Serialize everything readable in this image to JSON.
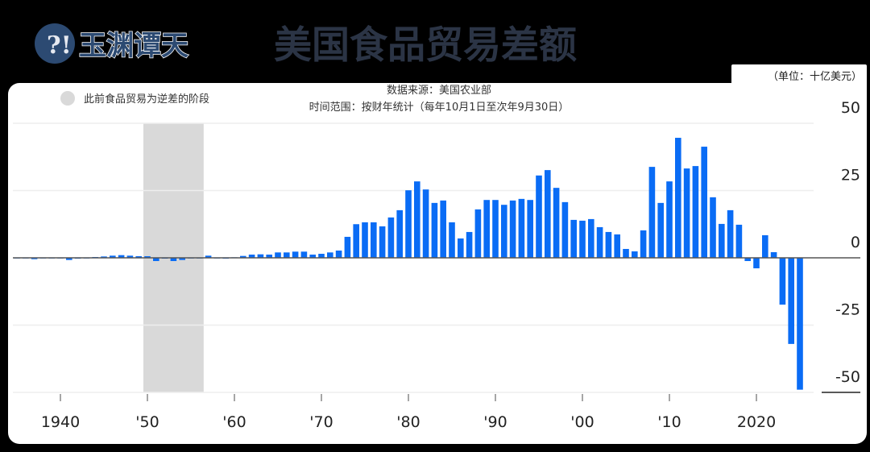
{
  "header": {
    "logo_text": "玉渊谭天",
    "title": "美国食品贸易差额"
  },
  "unit_label": "（单位：十亿美元）",
  "source_line": "数据来源：美国农业部",
  "period_line": "时间范围：按财年统计（每年10月1日至次年9月30日）",
  "colors": {
    "bar": "#0a6cf5",
    "shade": "#d9d9d9",
    "title": "#2b3445",
    "logo": "#2c4a72"
  },
  "chart_data": {
    "type": "bar",
    "title": "美国食品贸易差额",
    "xlabel": "",
    "ylabel": "",
    "ylim": [
      -50,
      50
    ],
    "yticks": [
      50,
      25,
      0,
      -25,
      -50
    ],
    "ytick_labels": [
      "50",
      "25",
      "0",
      "-25",
      "-50"
    ],
    "xticks": [
      1940,
      1950,
      1960,
      1970,
      1980,
      1990,
      2000,
      2010,
      2020
    ],
    "xtick_labels": [
      "1940",
      "'50",
      "'60",
      "'70",
      "'80",
      "'90",
      "'00",
      "'10",
      "2020"
    ],
    "grid": true,
    "legend": {
      "position": "top-left",
      "label": "此前食品贸易为逆差的阶段"
    },
    "shaded_period": [
      1950,
      1956
    ],
    "x": [
      1935,
      1936,
      1937,
      1938,
      1939,
      1940,
      1941,
      1942,
      1943,
      1944,
      1945,
      1946,
      1947,
      1948,
      1949,
      1950,
      1951,
      1952,
      1953,
      1954,
      1955,
      1956,
      1957,
      1958,
      1959,
      1960,
      1961,
      1962,
      1963,
      1964,
      1965,
      1966,
      1967,
      1968,
      1969,
      1970,
      1971,
      1972,
      1973,
      1974,
      1975,
      1976,
      1977,
      1978,
      1979,
      1980,
      1981,
      1982,
      1983,
      1984,
      1985,
      1986,
      1987,
      1988,
      1989,
      1990,
      1991,
      1992,
      1993,
      1994,
      1995,
      1996,
      1997,
      1998,
      1999,
      2000,
      2001,
      2002,
      2003,
      2004,
      2005,
      2006,
      2007,
      2008,
      2009,
      2010,
      2011,
      2012,
      2013,
      2014,
      2015,
      2016,
      2017,
      2018,
      2019,
      2020,
      2021,
      2022,
      2023,
      2024,
      2025
    ],
    "values": [
      -0.2,
      -0.2,
      -0.5,
      -0.2,
      -0.2,
      -0.2,
      -0.8,
      -0.3,
      -0.2,
      0.3,
      0.5,
      0.8,
      1.0,
      0.8,
      0.6,
      0.6,
      -1.2,
      -0.3,
      -1.2,
      -0.8,
      -0.2,
      -0.1,
      0.8,
      -0.2,
      -0.3,
      0.2,
      0.7,
      1.2,
      1.3,
      1.2,
      2.0,
      2.0,
      2.3,
      2.3,
      1.2,
      1.5,
      2.0,
      2.7,
      7.8,
      12.5,
      13.2,
      13.2,
      11.7,
      15.0,
      17.7,
      25.1,
      28.4,
      25.4,
      20.4,
      21.3,
      13.2,
      7.2,
      9.6,
      18.0,
      21.5,
      21.5,
      19.7,
      21.3,
      21.9,
      21.5,
      30.6,
      32.6,
      26.0,
      20.7,
      14.1,
      13.8,
      14.4,
      11.4,
      9.6,
      8.7,
      3.3,
      2.4,
      10.2,
      33.8,
      20.4,
      28.4,
      44.6,
      33.2,
      34.1,
      41.3,
      22.5,
      12.6,
      17.7,
      12.3,
      -1.2,
      -3.9,
      8.4,
      2.1,
      -17.4,
      -32.0,
      -49.0
    ]
  }
}
